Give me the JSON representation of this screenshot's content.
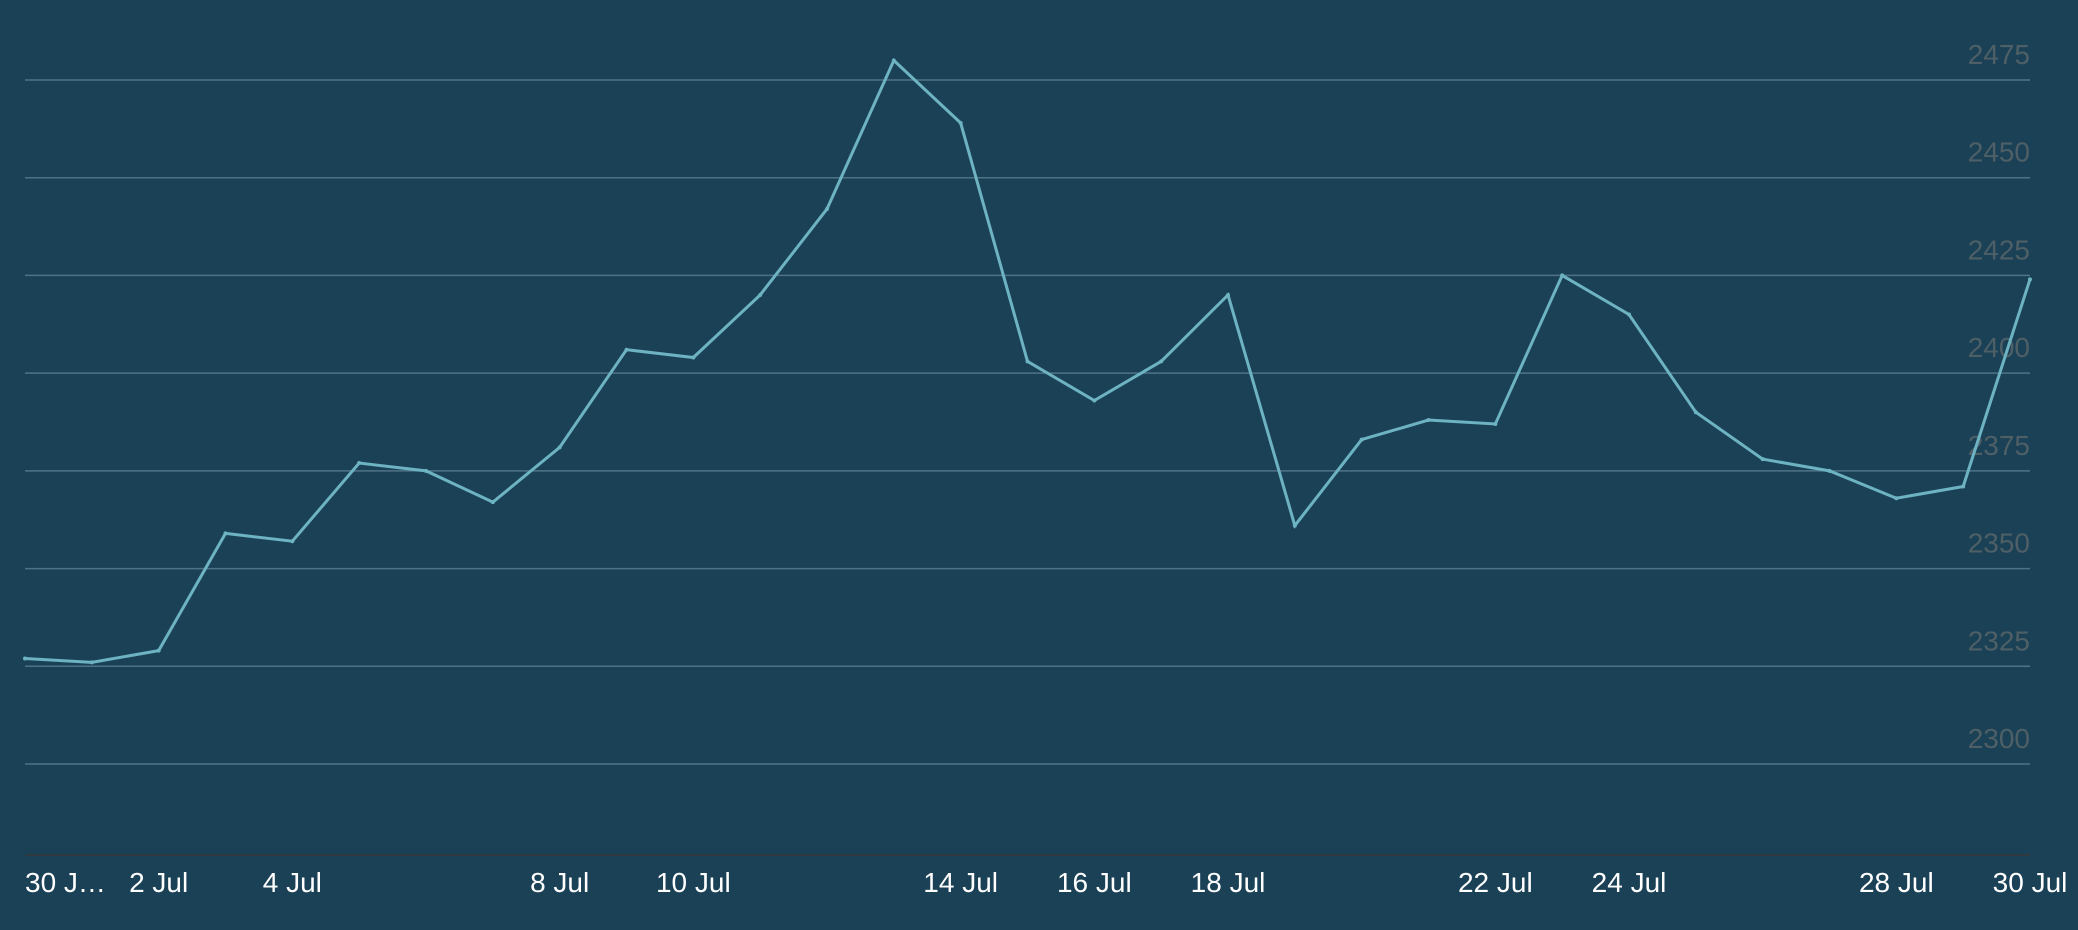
{
  "chart_data": {
    "type": "line",
    "title": "",
    "xlabel": "",
    "ylabel": "",
    "ylim": [
      2300,
      2475
    ],
    "y_ticks": [
      2475,
      2450,
      2425,
      2400,
      2375,
      2350,
      2325,
      2300
    ],
    "x_tick_labels": [
      {
        "date": "2023-06-30",
        "label": "30 J…"
      },
      {
        "date": "2023-07-02",
        "label": "2 Jul"
      },
      {
        "date": "2023-07-04",
        "label": "4 Jul"
      },
      {
        "date": "2023-07-08",
        "label": "8 Jul"
      },
      {
        "date": "2023-07-10",
        "label": "10 Jul"
      },
      {
        "date": "2023-07-14",
        "label": "14 Jul"
      },
      {
        "date": "2023-07-16",
        "label": "16 Jul"
      },
      {
        "date": "2023-07-18",
        "label": "18 Jul"
      },
      {
        "date": "2023-07-22",
        "label": "22 Jul"
      },
      {
        "date": "2023-07-24",
        "label": "24 Jul"
      },
      {
        "date": "2023-07-28",
        "label": "28 Jul"
      },
      {
        "date": "2023-07-30",
        "label": "30 Jul"
      }
    ],
    "grid": true,
    "legend": "none",
    "colors": {
      "background": "#1b4157",
      "line": "#6db3c2",
      "grid": "#4f7386",
      "y_tick_text": "#4e5f66",
      "x_tick_text": "#ffffff"
    },
    "series": [
      {
        "x": [
          "2023-06-30",
          "2023-07-01",
          "2023-07-02",
          "2023-07-03",
          "2023-07-04",
          "2023-07-05",
          "2023-07-06",
          "2023-07-07",
          "2023-07-08",
          "2023-07-09",
          "2023-07-10",
          "2023-07-11",
          "2023-07-12",
          "2023-07-13",
          "2023-07-14",
          "2023-07-15",
          "2023-07-16",
          "2023-07-17",
          "2023-07-18",
          "2023-07-19",
          "2023-07-20",
          "2023-07-21",
          "2023-07-22",
          "2023-07-23",
          "2023-07-24",
          "2023-07-25",
          "2023-07-26",
          "2023-07-27",
          "2023-07-28",
          "2023-07-29",
          "2023-07-30"
        ],
        "values": [
          2327,
          2326,
          2329,
          2359,
          2357,
          2377,
          2375,
          2367,
          2381,
          2406,
          2404,
          2420,
          2442,
          2480,
          2464,
          2403,
          2393,
          2403,
          2420,
          2361,
          2383,
          2388,
          2387,
          2425,
          2415,
          2390,
          2378,
          2375,
          2368,
          2371,
          2424
        ]
      }
    ]
  }
}
